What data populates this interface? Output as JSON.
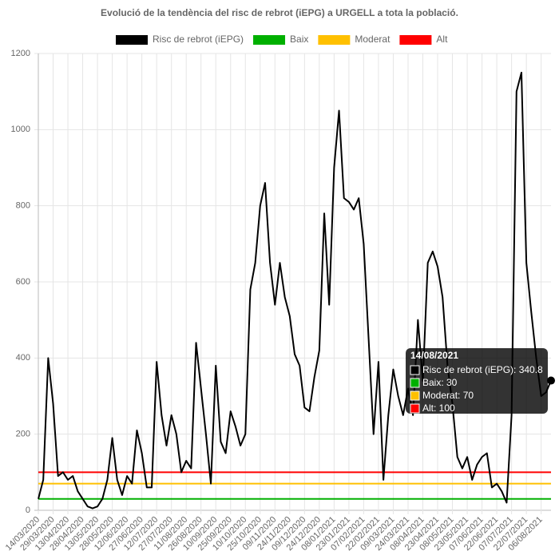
{
  "chart_data": {
    "type": "line",
    "title": "Evolució de la tendència del risc de rebrot (iEPG) a URGELL a tota la població.",
    "categories": [
      "14/03/2020",
      null,
      null,
      "29/03/2020",
      null,
      null,
      "13/04/2020",
      null,
      null,
      "28/04/2020",
      null,
      null,
      "13/05/2020",
      null,
      null,
      "28/05/2020",
      null,
      null,
      "12/06/2020",
      null,
      null,
      "27/06/2020",
      null,
      null,
      "12/07/2020",
      null,
      null,
      "27/07/2020",
      null,
      null,
      "11/08/2020",
      null,
      null,
      "26/08/2020",
      null,
      null,
      "10/09/2020",
      null,
      null,
      "25/09/2020",
      null,
      null,
      "10/10/2020",
      null,
      null,
      "25/10/2020",
      null,
      null,
      "09/11/2020",
      null,
      null,
      "24/11/2020",
      null,
      null,
      "09/12/2020",
      null,
      null,
      "24/12/2020",
      null,
      null,
      "08/01/2021",
      null,
      null,
      "23/01/2021",
      null,
      null,
      "07/02/2021",
      null,
      null,
      "22/02/2021",
      null,
      null,
      "09/03/2021",
      null,
      null,
      "24/03/2021",
      null,
      null,
      "08/04/2021",
      null,
      null,
      "23/04/2021",
      null,
      null,
      "08/05/2021",
      null,
      null,
      "23/05/2021",
      null,
      null,
      "07/06/2021",
      null,
      null,
      "22/06/2021",
      null,
      null,
      "07/07/2021",
      null,
      null,
      "22/07/2021",
      null,
      null,
      "06/08/2021",
      null,
      null
    ],
    "series": [
      {
        "name": "Risc de rebrot (iEPG)",
        "color": "#000000",
        "values": [
          30,
          80,
          400,
          280,
          90,
          100,
          80,
          90,
          50,
          30,
          10,
          5,
          10,
          30,
          80,
          190,
          80,
          40,
          90,
          70,
          210,
          150,
          60,
          60,
          390,
          250,
          170,
          250,
          200,
          100,
          130,
          110,
          440,
          320,
          200,
          70,
          380,
          180,
          150,
          260,
          220,
          170,
          200,
          580,
          650,
          800,
          860,
          650,
          540,
          650,
          560,
          510,
          410,
          380,
          270,
          260,
          350,
          420,
          780,
          540,
          900,
          1050,
          820,
          810,
          790,
          820,
          700,
          450,
          200,
          390,
          80,
          250,
          370,
          300,
          250,
          320,
          250,
          500,
          340,
          650,
          680,
          640,
          560,
          380,
          280,
          140,
          110,
          140,
          80,
          120,
          140,
          150,
          60,
          70,
          50,
          20,
          250,
          1100,
          1150,
          650,
          520,
          400,
          300,
          310,
          340.8
        ]
      },
      {
        "name": "Baix",
        "color": "#00b000",
        "values": [
          30,
          30,
          30,
          30,
          30,
          30,
          30,
          30,
          30,
          30,
          30,
          30,
          30,
          30,
          30,
          30,
          30,
          30,
          30,
          30,
          30,
          30,
          30,
          30,
          30,
          30,
          30,
          30,
          30,
          30,
          30,
          30,
          30,
          30,
          30,
          30,
          30,
          30,
          30,
          30,
          30,
          30,
          30,
          30,
          30,
          30,
          30,
          30,
          30,
          30,
          30,
          30,
          30,
          30,
          30,
          30,
          30,
          30,
          30,
          30,
          30,
          30,
          30,
          30,
          30,
          30,
          30,
          30,
          30,
          30,
          30,
          30,
          30,
          30,
          30,
          30,
          30,
          30,
          30,
          30,
          30,
          30,
          30,
          30,
          30,
          30,
          30,
          30,
          30,
          30,
          30,
          30,
          30,
          30,
          30,
          30,
          30,
          30,
          30,
          30,
          30,
          30,
          30,
          30,
          30
        ]
      },
      {
        "name": "Moderat",
        "color": "#ffc000",
        "values": [
          70,
          70,
          70,
          70,
          70,
          70,
          70,
          70,
          70,
          70,
          70,
          70,
          70,
          70,
          70,
          70,
          70,
          70,
          70,
          70,
          70,
          70,
          70,
          70,
          70,
          70,
          70,
          70,
          70,
          70,
          70,
          70,
          70,
          70,
          70,
          70,
          70,
          70,
          70,
          70,
          70,
          70,
          70,
          70,
          70,
          70,
          70,
          70,
          70,
          70,
          70,
          70,
          70,
          70,
          70,
          70,
          70,
          70,
          70,
          70,
          70,
          70,
          70,
          70,
          70,
          70,
          70,
          70,
          70,
          70,
          70,
          70,
          70,
          70,
          70,
          70,
          70,
          70,
          70,
          70,
          70,
          70,
          70,
          70,
          70,
          70,
          70,
          70,
          70,
          70,
          70,
          70,
          70,
          70,
          70,
          70,
          70,
          70,
          70,
          70,
          70,
          70,
          70,
          70,
          70
        ]
      },
      {
        "name": "Alt",
        "color": "#ff0000",
        "values": [
          100,
          100,
          100,
          100,
          100,
          100,
          100,
          100,
          100,
          100,
          100,
          100,
          100,
          100,
          100,
          100,
          100,
          100,
          100,
          100,
          100,
          100,
          100,
          100,
          100,
          100,
          100,
          100,
          100,
          100,
          100,
          100,
          100,
          100,
          100,
          100,
          100,
          100,
          100,
          100,
          100,
          100,
          100,
          100,
          100,
          100,
          100,
          100,
          100,
          100,
          100,
          100,
          100,
          100,
          100,
          100,
          100,
          100,
          100,
          100,
          100,
          100,
          100,
          100,
          100,
          100,
          100,
          100,
          100,
          100,
          100,
          100,
          100,
          100,
          100,
          100,
          100,
          100,
          100,
          100,
          100,
          100,
          100,
          100,
          100,
          100,
          100,
          100,
          100,
          100,
          100,
          100,
          100,
          100,
          100,
          100,
          100,
          100,
          100,
          100,
          100,
          100,
          100,
          100,
          100
        ]
      }
    ],
    "ylim": [
      0,
      1200
    ],
    "yticks": [
      0,
      200,
      400,
      600,
      800,
      1000,
      1200
    ],
    "grid": true,
    "legend": "top",
    "tooltip": {
      "title": "14/08/2021",
      "items": [
        "Risc de rebrot (iEPG): 340.8",
        "Baix: 30",
        "Moderat: 70",
        "Alt: 100"
      ]
    }
  }
}
